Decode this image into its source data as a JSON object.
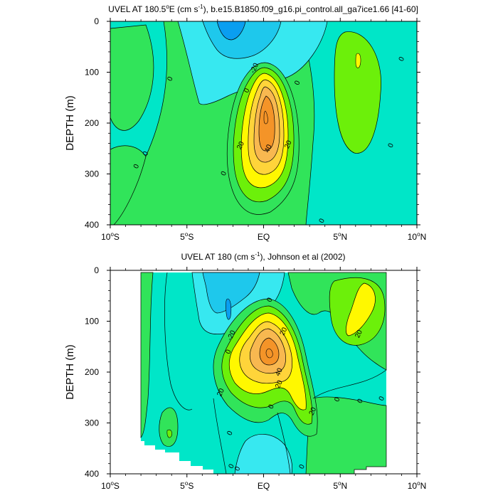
{
  "chart_data": [
    {
      "type": "contour",
      "variable": "UVEL",
      "title_prefix": "UVEL AT 180.5",
      "title_degree": "o",
      "title_unit_open": "E (cm s",
      "title_unit_exp": "-1",
      "title_rest": "), b.e15.B1850.f09_g16.pi_control.all_ga7ice1.66 [41-60]",
      "ylabel": "DEPTH (m)",
      "xlim": [
        -10,
        10
      ],
      "ylim": [
        400,
        0
      ],
      "x_ticks": [
        {
          "value": -10,
          "num": "10",
          "deg": "o",
          "hem": "S"
        },
        {
          "value": -5,
          "num": "5",
          "deg": "o",
          "hem": "S"
        },
        {
          "value": 0,
          "num": "EQ",
          "deg": "",
          "hem": ""
        },
        {
          "value": 5,
          "num": "5",
          "deg": "o",
          "hem": "N"
        },
        {
          "value": 10,
          "num": "10",
          "deg": "o",
          "hem": "N"
        }
      ],
      "y_ticks": [
        {
          "value": 0,
          "label": "0"
        },
        {
          "value": 100,
          "label": "100"
        },
        {
          "value": 200,
          "label": "200"
        },
        {
          "value": 300,
          "label": "300"
        },
        {
          "value": 400,
          "label": "400"
        }
      ],
      "contour_levels": [
        -30,
        -20,
        -10,
        0,
        10,
        20,
        30,
        40,
        50,
        60
      ],
      "fill_colors": [
        "#0a9ef0",
        "#1ec8ec",
        "#37e8f0",
        "#00e6c8",
        "#31e45a",
        "#6cf00a",
        "#fff800",
        "#ffd43a",
        "#f8b850",
        "#f49428"
      ],
      "contour_labels": [
        {
          "x": -8.3,
          "y": 285,
          "text": "0"
        },
        {
          "x": -7.7,
          "y": 260,
          "text": "0"
        },
        {
          "x": -6.1,
          "y": 113,
          "text": "0"
        },
        {
          "x": -0.6,
          "y": 92,
          "text": "-20"
        },
        {
          "x": -1.1,
          "y": 136,
          "text": "0"
        },
        {
          "x": -2.6,
          "y": 299,
          "text": "0"
        },
        {
          "x": -1.5,
          "y": 244,
          "text": "20"
        },
        {
          "x": 0.3,
          "y": 250,
          "text": "40"
        },
        {
          "x": 1.6,
          "y": 242,
          "text": "20"
        },
        {
          "x": 2.2,
          "y": 121,
          "text": "0"
        },
        {
          "x": 3.8,
          "y": 392,
          "text": "0"
        },
        {
          "x": 8.3,
          "y": 244,
          "text": "0"
        },
        {
          "x": 9.0,
          "y": 74,
          "text": "0"
        }
      ],
      "features": [
        {
          "kind": "core",
          "value": 60,
          "lon": 0.0,
          "depth": 185
        },
        {
          "kind": "westward",
          "value": -30,
          "lon": -2.3,
          "depth": 8
        },
        {
          "kind": "eastward",
          "value": 20,
          "lon": 6.1,
          "depth": 80
        }
      ]
    },
    {
      "type": "contour",
      "variable": "UVEL",
      "title_prefix": "UVEL AT 180 (cm s",
      "title_unit_exp": "-1",
      "title_rest": "), Johnson et al (2002)",
      "ylabel": "DEPTH (m)",
      "xlim": [
        -10,
        10
      ],
      "ylim": [
        400,
        0
      ],
      "data_lon_range": [
        -8,
        8
      ],
      "x_ticks": [
        {
          "value": -10,
          "num": "10",
          "deg": "o",
          "hem": "S"
        },
        {
          "value": -5,
          "num": "5",
          "deg": "o",
          "hem": "S"
        },
        {
          "value": 0,
          "num": "EQ",
          "deg": "",
          "hem": ""
        },
        {
          "value": 5,
          "num": "5",
          "deg": "o",
          "hem": "N"
        },
        {
          "value": 10,
          "num": "10",
          "deg": "o",
          "hem": "N"
        }
      ],
      "y_ticks": [
        {
          "value": 0,
          "label": "0"
        },
        {
          "value": 100,
          "label": "100"
        },
        {
          "value": 200,
          "label": "200"
        },
        {
          "value": 300,
          "label": "300"
        },
        {
          "value": 400,
          "label": "400"
        }
      ],
      "contour_levels": [
        -30,
        -20,
        -10,
        0,
        10,
        20,
        30,
        40,
        50,
        60
      ],
      "fill_colors": [
        "#0a9ef0",
        "#1ec8ec",
        "#37e8f0",
        "#00e6c8",
        "#31e45a",
        "#6cf00a",
        "#fff800",
        "#ffd43a",
        "#f8b850",
        "#f49428"
      ],
      "contour_labels": [
        {
          "x": -2.3,
          "y": 160,
          "text": "0"
        },
        {
          "x": -2.2,
          "y": 320,
          "text": "0"
        },
        {
          "x": -2.1,
          "y": 385,
          "text": "0"
        },
        {
          "x": -1.7,
          "y": 390,
          "text": "0"
        },
        {
          "x": -2.1,
          "y": 128,
          "text": "-20"
        },
        {
          "x": -2.8,
          "y": 240,
          "text": "20"
        },
        {
          "x": 0.4,
          "y": 58,
          "text": "0"
        },
        {
          "x": 1.3,
          "y": 120,
          "text": "20"
        },
        {
          "x": 1.0,
          "y": 200,
          "text": "40"
        },
        {
          "x": 1.0,
          "y": 224,
          "text": "20"
        },
        {
          "x": 3.2,
          "y": 277,
          "text": "20"
        },
        {
          "x": 0.5,
          "y": 268,
          "text": "0"
        },
        {
          "x": 2.5,
          "y": 386,
          "text": "0"
        },
        {
          "x": 4.8,
          "y": 254,
          "text": "0"
        },
        {
          "x": 6.3,
          "y": 257,
          "text": "0"
        },
        {
          "x": 7.7,
          "y": 252,
          "text": "0"
        },
        {
          "x": 6.2,
          "y": 125,
          "text": "20"
        }
      ],
      "features": [
        {
          "kind": "core",
          "value": 60,
          "lon": 0.3,
          "depth": 165
        },
        {
          "kind": "westward",
          "value": -20,
          "lon": -2.3,
          "depth": 60
        },
        {
          "kind": "eastward",
          "value": 20,
          "lon": 6.3,
          "depth": 95
        }
      ]
    }
  ]
}
